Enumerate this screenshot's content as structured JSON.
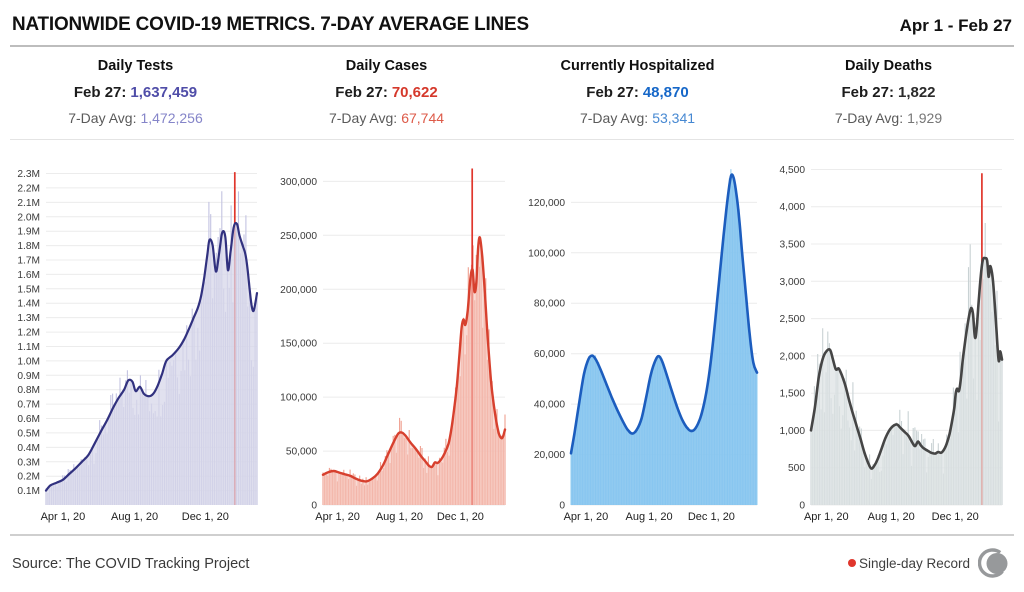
{
  "header": {
    "title": "NATIONWIDE COVID-19 METRICS. 7-DAY AVERAGE LINES",
    "date_range": "Apr 1 - Feb 27"
  },
  "panels": [
    {
      "title": "Daily Tests",
      "date_label": "Feb 27:",
      "value": "1,637,459",
      "avg_label": "7-Day Avg:",
      "avg_value": "1,472,256",
      "value_color": "#4f4da8",
      "avg_color": "#8585c9"
    },
    {
      "title": "Daily Cases",
      "date_label": "Feb 27:",
      "value": "70,622",
      "avg_label": "7-Day Avg:",
      "avg_value": "67,744",
      "value_color": "#d5382b",
      "avg_color": "#dd5a48"
    },
    {
      "title": "Currently Hospitalized",
      "date_label": "Feb 27:",
      "value": "48,870",
      "avg_label": "7-Day Avg:",
      "avg_value": "53,341",
      "value_color": "#1667c8",
      "avg_color": "#4688d2"
    },
    {
      "title": "Daily Deaths",
      "date_label": "Feb 27:",
      "value": "1,822",
      "avg_label": "7-Day Avg:",
      "avg_value": "1,929",
      "value_color": "#2b2b2b",
      "avg_color": "#767676"
    }
  ],
  "footer": {
    "source": "Source: The COVID Tracking Project",
    "record_legend": "Single-day Record",
    "record_color": "#e0362c",
    "logo_color": "#97999b"
  },
  "chart_data": [
    {
      "type": "area",
      "title": "Daily Tests",
      "x_ticks": [
        "Apr 1, 20",
        "Aug 1, 20",
        "Dec 1, 20"
      ],
      "y_ticks": [
        {
          "v": 100000,
          "label": "0.1M"
        },
        {
          "v": 200000,
          "label": "0.2M"
        },
        {
          "v": 300000,
          "label": "0.3M"
        },
        {
          "v": 400000,
          "label": "0.4M"
        },
        {
          "v": 500000,
          "label": "0.5M"
        },
        {
          "v": 600000,
          "label": "0.6M"
        },
        {
          "v": 700000,
          "label": "0.7M"
        },
        {
          "v": 800000,
          "label": "0.8M"
        },
        {
          "v": 900000,
          "label": "0.9M"
        },
        {
          "v": 1000000,
          "label": "1.0M"
        },
        {
          "v": 1100000,
          "label": "1.1M"
        },
        {
          "v": 1200000,
          "label": "1.2M"
        },
        {
          "v": 1300000,
          "label": "1.3M"
        },
        {
          "v": 1400000,
          "label": "1.4M"
        },
        {
          "v": 1500000,
          "label": "1.5M"
        },
        {
          "v": 1600000,
          "label": "1.6M"
        },
        {
          "v": 1700000,
          "label": "1.7M"
        },
        {
          "v": 1800000,
          "label": "1.8M"
        },
        {
          "v": 1900000,
          "label": "1.9M"
        },
        {
          "v": 2000000,
          "label": "2.0M"
        },
        {
          "v": 2100000,
          "label": "2.1M"
        },
        {
          "v": 2200000,
          "label": "2.2M"
        },
        {
          "v": 2300000,
          "label": "2.3M"
        }
      ],
      "ymax": 2380000,
      "line_color": "#31317f",
      "fill_color": "#d7d7ea",
      "fill_opacity": 0.75,
      "bar_color": "#c3c3e1",
      "bar_noise": {
        "up": 0.2,
        "down": 0.32
      },
      "record": {
        "t": 0.895,
        "v": 2310000
      },
      "avg_series": [
        [
          0.0,
          100000
        ],
        [
          0.02,
          135000
        ],
        [
          0.05,
          155000
        ],
        [
          0.08,
          175000
        ],
        [
          0.11,
          215000
        ],
        [
          0.14,
          255000
        ],
        [
          0.17,
          300000
        ],
        [
          0.2,
          345000
        ],
        [
          0.23,
          425000
        ],
        [
          0.26,
          510000
        ],
        [
          0.29,
          590000
        ],
        [
          0.32,
          680000
        ],
        [
          0.345,
          745000
        ],
        [
          0.37,
          800000
        ],
        [
          0.39,
          865000
        ],
        [
          0.41,
          855000
        ],
        [
          0.425,
          790000
        ],
        [
          0.445,
          820000
        ],
        [
          0.465,
          770000
        ],
        [
          0.49,
          755000
        ],
        [
          0.51,
          775000
        ],
        [
          0.53,
          830000
        ],
        [
          0.55,
          910000
        ],
        [
          0.57,
          1000000
        ],
        [
          0.6,
          1040000
        ],
        [
          0.63,
          1090000
        ],
        [
          0.655,
          1150000
        ],
        [
          0.68,
          1230000
        ],
        [
          0.7,
          1300000
        ],
        [
          0.72,
          1370000
        ],
        [
          0.735,
          1450000
        ],
        [
          0.75,
          1580000
        ],
        [
          0.765,
          1740000
        ],
        [
          0.775,
          1840000
        ],
        [
          0.79,
          1800000
        ],
        [
          0.805,
          1620000
        ],
        [
          0.82,
          1740000
        ],
        [
          0.835,
          1890000
        ],
        [
          0.85,
          1860000
        ],
        [
          0.862,
          1630000
        ],
        [
          0.875,
          1760000
        ],
        [
          0.89,
          1930000
        ],
        [
          0.905,
          1950000
        ],
        [
          0.917,
          1870000
        ],
        [
          0.93,
          1810000
        ],
        [
          0.945,
          1740000
        ],
        [
          0.955,
          1640000
        ],
        [
          0.965,
          1500000
        ],
        [
          0.975,
          1380000
        ],
        [
          0.985,
          1350000
        ],
        [
          1.0,
          1470000
        ]
      ]
    },
    {
      "type": "area",
      "title": "Daily Cases",
      "x_ticks": [
        "Apr 1, 20",
        "Aug 1, 20",
        "Dec 1, 20"
      ],
      "y_ticks": [
        {
          "v": 0,
          "label": "0"
        },
        {
          "v": 50000,
          "label": "50,000"
        },
        {
          "v": 100000,
          "label": "100,000"
        },
        {
          "v": 150000,
          "label": "150,000"
        },
        {
          "v": 200000,
          "label": "200,000"
        },
        {
          "v": 250000,
          "label": "250,000"
        },
        {
          "v": 300000,
          "label": "300,000"
        }
      ],
      "ymax": 318000,
      "line_color": "#d7402e",
      "fill_color": "#f5c4ba",
      "fill_opacity": 0.62,
      "bar_color": "#efa090",
      "bar_noise": {
        "up": 0.22,
        "down": 0.3
      },
      "record": {
        "t": 0.82,
        "v": 312000
      },
      "avg_series": [
        [
          0.0,
          28000
        ],
        [
          0.03,
          30500
        ],
        [
          0.06,
          31500
        ],
        [
          0.09,
          30000
        ],
        [
          0.12,
          28500
        ],
        [
          0.15,
          27000
        ],
        [
          0.18,
          24500
        ],
        [
          0.21,
          22500
        ],
        [
          0.24,
          22000
        ],
        [
          0.27,
          24500
        ],
        [
          0.3,
          29000
        ],
        [
          0.33,
          37000
        ],
        [
          0.36,
          48000
        ],
        [
          0.39,
          59000
        ],
        [
          0.415,
          66500
        ],
        [
          0.435,
          67000
        ],
        [
          0.455,
          64000
        ],
        [
          0.48,
          58000
        ],
        [
          0.51,
          52000
        ],
        [
          0.54,
          45000
        ],
        [
          0.565,
          40000
        ],
        [
          0.585,
          36000
        ],
        [
          0.6,
          35500
        ],
        [
          0.615,
          39500
        ],
        [
          0.63,
          39000
        ],
        [
          0.65,
          42500
        ],
        [
          0.67,
          48500
        ],
        [
          0.69,
          57000
        ],
        [
          0.705,
          70000
        ],
        [
          0.72,
          88000
        ],
        [
          0.735,
          110000
        ],
        [
          0.75,
          140000
        ],
        [
          0.762,
          165000
        ],
        [
          0.772,
          172000
        ],
        [
          0.782,
          167000
        ],
        [
          0.795,
          180000
        ],
        [
          0.81,
          210000
        ],
        [
          0.822,
          218000
        ],
        [
          0.832,
          198000
        ],
        [
          0.842,
          205000
        ],
        [
          0.852,
          238000
        ],
        [
          0.862,
          248000
        ],
        [
          0.875,
          230000
        ],
        [
          0.89,
          195000
        ],
        [
          0.905,
          155000
        ],
        [
          0.925,
          112000
        ],
        [
          0.945,
          85000
        ],
        [
          0.965,
          67000
        ],
        [
          0.98,
          62000
        ],
        [
          0.99,
          64000
        ],
        [
          1.0,
          70000
        ]
      ]
    },
    {
      "type": "area",
      "title": "Currently Hospitalized",
      "x_ticks": [
        "Apr 1, 20",
        "Aug 1, 20",
        "Dec 1, 20"
      ],
      "y_ticks": [
        {
          "v": 0,
          "label": "0"
        },
        {
          "v": 20000,
          "label": "20,000"
        },
        {
          "v": 40000,
          "label": "40,000"
        },
        {
          "v": 60000,
          "label": "60,000"
        },
        {
          "v": 80000,
          "label": "80,000"
        },
        {
          "v": 100000,
          "label": "100,000"
        },
        {
          "v": 120000,
          "label": "120,000"
        }
      ],
      "ymax": 136000,
      "line_color": "#1c5dbe",
      "fill_color": "#85c4ef",
      "fill_opacity": 0.85,
      "bar_color": "#9bd0f2",
      "bar_noise": {
        "up": 0.03,
        "down": 0.03
      },
      "record": null,
      "avg_series": [
        [
          0.0,
          20500
        ],
        [
          0.02,
          29000
        ],
        [
          0.045,
          41000
        ],
        [
          0.07,
          52000
        ],
        [
          0.095,
          58000
        ],
        [
          0.115,
          59200
        ],
        [
          0.135,
          57500
        ],
        [
          0.16,
          53500
        ],
        [
          0.19,
          48000
        ],
        [
          0.22,
          42500
        ],
        [
          0.25,
          37500
        ],
        [
          0.28,
          33000
        ],
        [
          0.305,
          29800
        ],
        [
          0.33,
          28300
        ],
        [
          0.355,
          30000
        ],
        [
          0.38,
          34500
        ],
        [
          0.405,
          43000
        ],
        [
          0.43,
          52000
        ],
        [
          0.455,
          57500
        ],
        [
          0.472,
          59000
        ],
        [
          0.49,
          57000
        ],
        [
          0.515,
          51500
        ],
        [
          0.545,
          44500
        ],
        [
          0.575,
          38000
        ],
        [
          0.6,
          33500
        ],
        [
          0.625,
          30500
        ],
        [
          0.648,
          29300
        ],
        [
          0.67,
          30500
        ],
        [
          0.695,
          34500
        ],
        [
          0.715,
          40000
        ],
        [
          0.735,
          48000
        ],
        [
          0.755,
          59000
        ],
        [
          0.775,
          73000
        ],
        [
          0.795,
          88000
        ],
        [
          0.815,
          103000
        ],
        [
          0.835,
          117000
        ],
        [
          0.85,
          126000
        ],
        [
          0.862,
          130800
        ],
        [
          0.875,
          129500
        ],
        [
          0.89,
          123000
        ],
        [
          0.905,
          113000
        ],
        [
          0.92,
          100000
        ],
        [
          0.94,
          84000
        ],
        [
          0.96,
          68000
        ],
        [
          0.98,
          56500
        ],
        [
          1.0,
          52500
        ]
      ]
    },
    {
      "type": "area",
      "title": "Daily Deaths",
      "x_ticks": [
        "Apr 1, 20",
        "Aug 1, 20",
        "Dec 1, 20"
      ],
      "y_ticks": [
        {
          "v": 0,
          "label": "0"
        },
        {
          "v": 500,
          "label": "500"
        },
        {
          "v": 1000,
          "label": "1,000"
        },
        {
          "v": 1500,
          "label": "1,500"
        },
        {
          "v": 2000,
          "label": "2,000"
        },
        {
          "v": 2500,
          "label": "2,500"
        },
        {
          "v": 3000,
          "label": "3,000"
        },
        {
          "v": 3500,
          "label": "3,500"
        },
        {
          "v": 4000,
          "label": "4,000"
        },
        {
          "v": 4500,
          "label": "4,500"
        }
      ],
      "ymax": 4600,
      "line_color": "#454545",
      "fill_color": "#dde2e3",
      "fill_opacity": 0.72,
      "bar_color": "#c9d2d4",
      "bar_noise": {
        "up": 0.35,
        "down": 0.45
      },
      "record": {
        "t": 0.895,
        "v": 4450
      },
      "avg_series": [
        [
          0.0,
          1000
        ],
        [
          0.02,
          1300
        ],
        [
          0.04,
          1700
        ],
        [
          0.06,
          1950
        ],
        [
          0.08,
          2060
        ],
        [
          0.1,
          2080
        ],
        [
          0.115,
          1950
        ],
        [
          0.13,
          1820
        ],
        [
          0.145,
          1830
        ],
        [
          0.16,
          1750
        ],
        [
          0.18,
          1600
        ],
        [
          0.2,
          1400
        ],
        [
          0.22,
          1220
        ],
        [
          0.24,
          1050
        ],
        [
          0.26,
          880
        ],
        [
          0.28,
          700
        ],
        [
          0.3,
          560
        ],
        [
          0.315,
          490
        ],
        [
          0.33,
          520
        ],
        [
          0.35,
          620
        ],
        [
          0.37,
          760
        ],
        [
          0.39,
          900
        ],
        [
          0.41,
          1000
        ],
        [
          0.43,
          1060
        ],
        [
          0.45,
          1080
        ],
        [
          0.47,
          1030
        ],
        [
          0.49,
          980
        ],
        [
          0.51,
          930
        ],
        [
          0.53,
          840
        ],
        [
          0.545,
          790
        ],
        [
          0.56,
          850
        ],
        [
          0.575,
          800
        ],
        [
          0.59,
          760
        ],
        [
          0.61,
          730
        ],
        [
          0.63,
          700
        ],
        [
          0.65,
          690
        ],
        [
          0.665,
          710
        ],
        [
          0.68,
          700
        ],
        [
          0.69,
          720
        ],
        [
          0.7,
          760
        ],
        [
          0.71,
          820
        ],
        [
          0.725,
          950
        ],
        [
          0.738,
          1120
        ],
        [
          0.75,
          1300
        ],
        [
          0.758,
          1500
        ],
        [
          0.765,
          1560
        ],
        [
          0.775,
          1530
        ],
        [
          0.785,
          1700
        ],
        [
          0.795,
          1950
        ],
        [
          0.81,
          2250
        ],
        [
          0.825,
          2500
        ],
        [
          0.838,
          2640
        ],
        [
          0.848,
          2560
        ],
        [
          0.856,
          2300
        ],
        [
          0.862,
          2250
        ],
        [
          0.87,
          2450
        ],
        [
          0.88,
          2800
        ],
        [
          0.89,
          3100
        ],
        [
          0.9,
          3290
        ],
        [
          0.912,
          3310
        ],
        [
          0.922,
          3280
        ],
        [
          0.93,
          3060
        ],
        [
          0.937,
          3200
        ],
        [
          0.945,
          3150
        ],
        [
          0.953,
          3000
        ],
        [
          0.962,
          2700
        ],
        [
          0.972,
          2300
        ],
        [
          0.98,
          2000
        ],
        [
          0.985,
          1930
        ],
        [
          0.99,
          2060
        ],
        [
          1.0,
          1950
        ]
      ]
    }
  ]
}
